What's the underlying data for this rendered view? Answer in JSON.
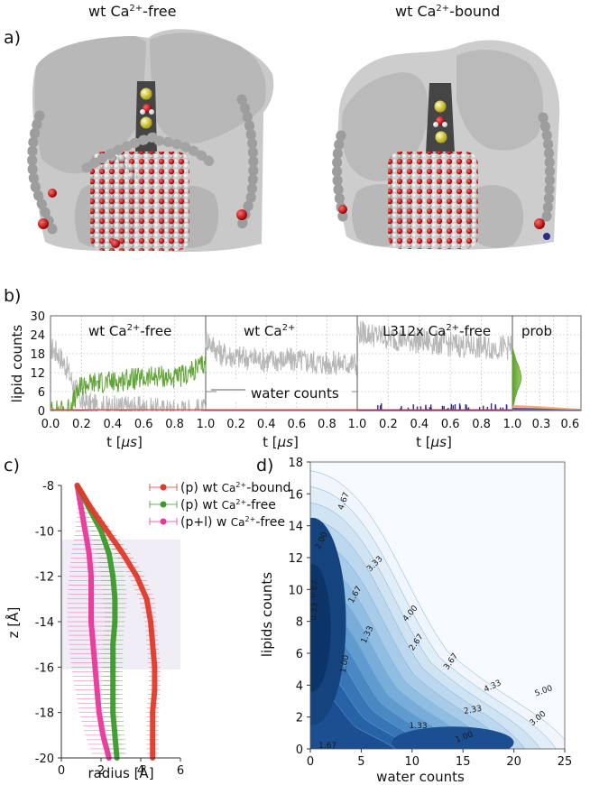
{
  "panel_a": {
    "letter": "a)",
    "left_title": {
      "pre": "wt Ca",
      "sup": "2+",
      "post": "-free"
    },
    "right_title": {
      "pre": "wt Ca",
      "sup": "2+",
      "post": "-bound"
    }
  },
  "panel_b": {
    "letter": "b)",
    "ylabel": "lipid counts",
    "yticks": [
      "0",
      "6",
      "12",
      "18",
      "24",
      "30"
    ],
    "sub1": {
      "pre": "wt Ca",
      "sup": "2+",
      "post": "-free"
    },
    "sub2": {
      "pre": "wt Ca",
      "sup": "2+",
      "post": ""
    },
    "sub3": {
      "pre": "L312x Ca",
      "sup": "2+",
      "post": "-free"
    },
    "sub4": {
      "pre": "prob",
      "sup": "",
      "post": ""
    },
    "water_counts_label": "water counts",
    "xlabel_pre": "t [",
    "xlabel_unit": "μs",
    "xlabel_post": "]",
    "xticks": [
      "0.0",
      "0.2",
      "0.4",
      "0.6",
      "0.8",
      "1.0"
    ],
    "prob_xticks": [
      "0.3",
      "0.6"
    ]
  },
  "panel_c": {
    "letter": "c)",
    "ylabel": "z [Å]",
    "xlabel": "radius [Å]",
    "yticks": [
      "-8",
      "-10",
      "-12",
      "-14",
      "-16",
      "-18",
      "-20"
    ],
    "xticks": [
      "0",
      "2",
      "4",
      "6"
    ],
    "legend": [
      {
        "pre": "(p) wt ",
        "ion": "Ca",
        "sup": "2+",
        "post": "-bound",
        "color": "#e0392a"
      },
      {
        "pre": "(p) wt ",
        "ion": "Ca",
        "sup": "2+",
        "post": "-free",
        "color": "#3a9a2a"
      },
      {
        "pre": "(p+l) w ",
        "ion": "Ca",
        "sup": "2+",
        "post": "-free",
        "color": "#e8379a"
      }
    ]
  },
  "panel_d": {
    "letter": "d)",
    "xlabel": "water counts",
    "ylabel": "lipids counts",
    "xticks": [
      "0",
      "5",
      "10",
      "15",
      "20",
      "25"
    ],
    "yticks": [
      "0",
      "2",
      "4",
      "6",
      "8",
      "10",
      "12",
      "14",
      "16",
      "18"
    ],
    "contour_labels": [
      "4.67",
      "2.00",
      "3.33",
      "0.67",
      "1.67",
      "0.33",
      "4.00",
      "1.33",
      "2.67",
      "1.00",
      "3.67",
      "4.33",
      "5.00",
      "2.33",
      "3.00",
      "1.33",
      "1.00",
      "1.67"
    ]
  },
  "chart_data": [
    {
      "type": "line",
      "panel": "b",
      "ylabel": "lipid counts",
      "xlabel": "t [μs]",
      "xlim": [
        0.0,
        1.0
      ],
      "ylim": [
        0,
        30
      ],
      "subplots": [
        {
          "title": "wt Ca2+-free",
          "series": [
            {
              "name": "",
              "color": "#b3b3b3",
              "t": [
                0.0,
                0.05,
                0.1,
                0.15,
                0.2,
                0.3,
                0.5,
                0.7,
                0.9,
                1.0
              ],
              "values": [
                20,
                18,
                14,
                8,
                3,
                1,
                1,
                0,
                0,
                0
              ]
            },
            {
              "name": "",
              "color": "#5aa02c",
              "t": [
                0.0,
                0.1,
                0.15,
                0.2,
                0.3,
                0.4,
                0.5,
                0.6,
                0.7,
                0.8,
                0.9,
                1.0
              ],
              "values": [
                0,
                0,
                3,
                8,
                9,
                9,
                10,
                10,
                11,
                10,
                12,
                15
              ]
            }
          ]
        },
        {
          "title": "wt Ca2+",
          "series": [
            {
              "name": "",
              "color": "#b3b3b3",
              "t": [
                0.0,
                0.1,
                0.2,
                0.4,
                0.6,
                0.8,
                1.0
              ],
              "values": [
                23,
                18,
                17,
                16,
                16,
                15,
                15
              ]
            },
            {
              "name": "water counts",
              "color": "#7f7f7f",
              "t": [
                0.0,
                1.0
              ],
              "values": [
                6,
                6
              ]
            }
          ]
        },
        {
          "title": "L312x Ca2+-free",
          "series": [
            {
              "name": "",
              "color": "#b3b3b3",
              "t": [
                0.0,
                0.2,
                0.4,
                0.6,
                0.8,
                1.0
              ],
              "values": [
                25,
                23,
                22,
                21,
                20,
                20
              ]
            },
            {
              "name": "",
              "color": "#2b2b8c",
              "t": [
                0.0,
                1.0
              ],
              "values": [
                0,
                0
              ]
            }
          ]
        }
      ]
    },
    {
      "type": "line",
      "panel": "c",
      "xlabel": "radius [Å]",
      "ylabel": "z [Å]",
      "xlim": [
        0,
        6
      ],
      "ylim": [
        -20,
        -8
      ],
      "series": [
        {
          "name": "(p) wt Ca2+-bound",
          "color": "#e0392a",
          "z": [
            -8.0,
            -9.0,
            -10.0,
            -11.0,
            -12.0,
            -13.0,
            -14.0,
            -15.0,
            -16.0,
            -17.0,
            -18.0,
            -19.0,
            -20.0
          ],
          "radius": [
            0.8,
            1.5,
            2.3,
            3.1,
            3.8,
            4.3,
            4.5,
            4.6,
            4.7,
            4.7,
            4.6,
            4.6,
            4.6
          ],
          "err": [
            0.1,
            0.2,
            0.3,
            0.4,
            0.4,
            0.4,
            0.3,
            0.3,
            0.3,
            0.3,
            0.3,
            0.3,
            0.3
          ]
        },
        {
          "name": "(p) wt Ca2+-free",
          "color": "#3a9a2a",
          "z": [
            -8.0,
            -9.0,
            -10.0,
            -11.0,
            -12.0,
            -13.0,
            -14.0,
            -15.0,
            -16.0,
            -17.0,
            -18.0,
            -19.0,
            -20.0
          ],
          "radius": [
            0.8,
            1.4,
            2.0,
            2.4,
            2.6,
            2.7,
            2.7,
            2.6,
            2.6,
            2.6,
            2.6,
            2.7,
            2.8
          ],
          "err": [
            0.1,
            0.3,
            0.5,
            0.6,
            0.6,
            0.6,
            0.5,
            0.5,
            0.5,
            0.5,
            0.5,
            0.5,
            0.5
          ]
        },
        {
          "name": "(p+l) w Ca2+-free",
          "color": "#e8379a",
          "z": [
            -8.0,
            -9.0,
            -10.0,
            -11.0,
            -12.0,
            -13.0,
            -14.0,
            -15.0,
            -16.0,
            -17.0,
            -18.0,
            -19.0,
            -20.0
          ],
          "radius": [
            0.8,
            1.0,
            1.2,
            1.4,
            1.5,
            1.5,
            1.5,
            1.6,
            1.7,
            1.8,
            1.9,
            2.1,
            2.4
          ],
          "err": [
            0.1,
            0.2,
            0.5,
            0.9,
            1.1,
            1.2,
            1.2,
            1.2,
            1.2,
            1.1,
            1.0,
            0.9,
            0.8
          ]
        }
      ]
    },
    {
      "type": "heatmap",
      "panel": "d",
      "xlabel": "water counts",
      "ylabel": "lipids counts",
      "xlim": [
        0,
        25
      ],
      "ylim": [
        0,
        18
      ],
      "contour_levels": [
        0.33,
        0.67,
        1.0,
        1.33,
        1.67,
        2.0,
        2.33,
        2.67,
        3.0,
        3.33,
        3.67,
        4.0,
        4.33,
        4.67,
        5.0
      ],
      "minima": [
        {
          "water": 0.5,
          "lipids": 8.0
        },
        {
          "water": 13.0,
          "lipids": 0.5
        }
      ]
    }
  ]
}
